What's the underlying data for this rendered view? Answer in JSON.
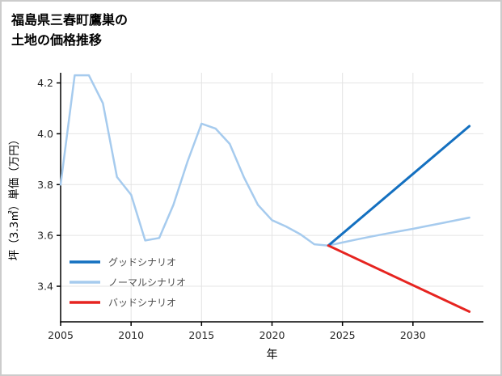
{
  "page": {
    "title_line1": "福島県三春町鷹巣の",
    "title_line2": "土地の価格推移"
  },
  "chart_data": {
    "type": "line",
    "title": "福島県三春町鷹巣の土地の価格推移",
    "xlabel": "年",
    "ylabel": "坪（3.3㎡）単価（万円）",
    "xlim": [
      2005,
      2035
    ],
    "ylim": [
      3.26,
      4.24
    ],
    "x_ticks": [
      2005,
      2010,
      2015,
      2020,
      2025,
      2030
    ],
    "y_tick_labels": [
      "3.4",
      "3.6",
      "3.8",
      "4.0",
      "4.2"
    ],
    "grid": true,
    "legend_position": "lower-left",
    "colors": {
      "grid": "#e4e4e4",
      "axis": "#000000",
      "tick_text": "#262626",
      "legend_text": "#4d4d4d",
      "good": "#1470c0",
      "normal": "#a6cbee",
      "bad": "#e62420"
    },
    "series": [
      {
        "id": "historical",
        "color": "#a6cbee",
        "width": 2.5,
        "x": [
          2005,
          2006,
          2007,
          2008,
          2009,
          2010,
          2011,
          2012,
          2013,
          2014,
          2015,
          2016,
          2017,
          2018,
          2019,
          2020,
          2021,
          2022,
          2023,
          2024
        ],
        "values": [
          3.8,
          4.23,
          4.23,
          4.12,
          3.83,
          3.76,
          3.58,
          3.59,
          3.72,
          3.89,
          4.04,
          4.02,
          3.96,
          3.83,
          3.72,
          3.66,
          3.635,
          3.605,
          3.565,
          3.56
        ]
      },
      {
        "id": "normal-scenario",
        "color": "#a6cbee",
        "width": 2.5,
        "x": [
          2024,
          2025,
          2026,
          2027,
          2028,
          2029,
          2030,
          2031,
          2032,
          2033,
          2034
        ],
        "values": [
          3.56,
          3.572,
          3.584,
          3.595,
          3.606,
          3.616,
          3.626,
          3.637,
          3.648,
          3.659,
          3.67
        ]
      },
      {
        "id": "good-scenario",
        "color": "#1470c0",
        "width": 3,
        "x": [
          2024,
          2034
        ],
        "values": [
          3.56,
          4.03
        ]
      },
      {
        "id": "bad-scenario",
        "color": "#e62420",
        "width": 3,
        "x": [
          2024,
          2034
        ],
        "values": [
          3.56,
          3.3
        ]
      }
    ],
    "legend": [
      {
        "label": "グッドシナリオ",
        "color": "#1470c0"
      },
      {
        "label": "ノーマルシナリオ",
        "color": "#a6cbee"
      },
      {
        "label": "バッドシナリオ",
        "color": "#e62420"
      }
    ]
  }
}
